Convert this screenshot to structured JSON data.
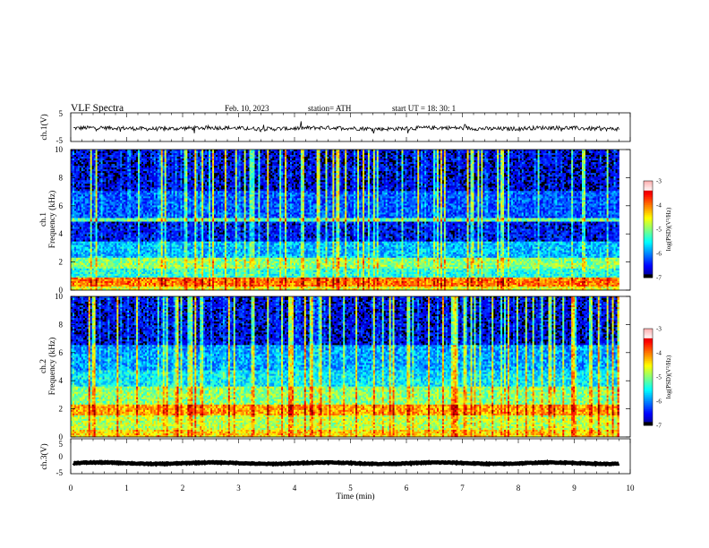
{
  "header": {
    "title": "VLF  Spectra",
    "date": "Feb. 10, 2023",
    "station": "station= ATH",
    "start": "start  UT  =   18: 30: 1"
  },
  "chart_data": [
    {
      "type": "line",
      "panel": "ch1-waveform",
      "ylabel": "ch.1(V)",
      "ylim": [
        -5,
        5
      ],
      "yticks": [
        "5",
        "-5"
      ],
      "xlim": [
        0,
        10
      ],
      "level": -0.4,
      "noise": 1.4,
      "color": "#000000"
    },
    {
      "type": "heatmap",
      "panel": "ch1-spectrogram",
      "ylabel": "ch.1\nFrequency (kHz)",
      "ylabel_line1": "ch.1",
      "ylabel_line2": "Frequency (kHz)",
      "ylim": [
        0,
        10
      ],
      "yticks": [
        "0",
        "2",
        "4",
        "6",
        "8",
        "10"
      ],
      "xlim": [
        0,
        10
      ],
      "data_end_min": 9.8,
      "colorbar": {
        "label": "log(PSD)(V²/Hz)",
        "range": [
          -7,
          -3
        ],
        "ticks": [
          "-3",
          "-4",
          "-5",
          "-6",
          "-7"
        ]
      },
      "bands": [
        {
          "f": [
            0.0,
            0.3
          ],
          "v": -4.6
        },
        {
          "f": [
            0.3,
            0.9
          ],
          "v": -4.0
        },
        {
          "f": [
            0.9,
            1.6
          ],
          "v": -5.4
        },
        {
          "f": [
            1.6,
            2.3
          ],
          "v": -5.0
        },
        {
          "f": [
            2.3,
            3.4
          ],
          "v": -5.8
        },
        {
          "f": [
            3.4,
            4.9
          ],
          "v": -6.5
        },
        {
          "f": [
            4.9,
            5.1
          ],
          "v": -5.2
        },
        {
          "f": [
            5.1,
            7.0
          ],
          "v": -6.2
        },
        {
          "f": [
            7.0,
            10.0
          ],
          "v": -6.6
        }
      ]
    },
    {
      "type": "heatmap",
      "panel": "ch2-spectrogram",
      "ylabel": "ch.2\nFrequency (kHz)",
      "ylabel_line1": "ch.2",
      "ylabel_line2": "Frequency (kHz)",
      "ylim": [
        0,
        10
      ],
      "yticks": [
        "0",
        "2",
        "4",
        "6",
        "8",
        "10"
      ],
      "xlim": [
        0,
        10
      ],
      "data_end_min": 9.8,
      "colorbar": {
        "label": "log(PSD)(V²/Hz)",
        "range": [
          -7,
          -3
        ],
        "ticks": [
          "-3",
          "-4",
          "-5",
          "-6",
          "-7"
        ]
      },
      "bands": [
        {
          "f": [
            0.0,
            0.5
          ],
          "v": -4.4
        },
        {
          "f": [
            0.5,
            1.5
          ],
          "v": -4.8
        },
        {
          "f": [
            1.5,
            2.3
          ],
          "v": -4.2
        },
        {
          "f": [
            2.3,
            3.6
          ],
          "v": -5.0
        },
        {
          "f": [
            3.6,
            4.8
          ],
          "v": -5.6
        },
        {
          "f": [
            4.8,
            6.6
          ],
          "v": -5.9
        },
        {
          "f": [
            6.6,
            10.0
          ],
          "v": -6.6
        }
      ]
    },
    {
      "type": "line",
      "panel": "ch3-waveform",
      "ylabel": "ch.3(V)",
      "ylim": [
        -5,
        5
      ],
      "yticks": [
        "5",
        "0",
        "-5"
      ],
      "xlim": [
        0,
        10
      ],
      "xlabel": "Time  (min)",
      "xticks": [
        "0",
        "1",
        "2",
        "3",
        "4",
        "5",
        "6",
        "7",
        "8",
        "9",
        "10"
      ],
      "level": -2,
      "noise": 0.25,
      "color": "#000000"
    }
  ]
}
